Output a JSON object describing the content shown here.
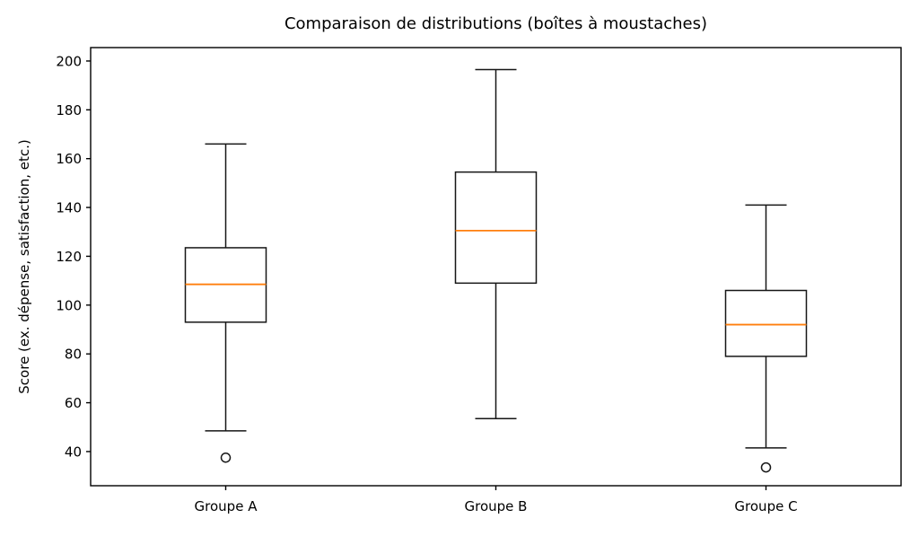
{
  "chart_data": {
    "type": "boxplot",
    "title": "Comparaison de distributions (boîtes à moustaches)",
    "xlabel": "",
    "ylabel": "Score (ex. dépense, satisfaction, etc.)",
    "categories": [
      "Groupe A",
      "Groupe B",
      "Groupe C"
    ],
    "y_ticks": [
      40,
      60,
      80,
      100,
      120,
      140,
      160,
      180,
      200
    ],
    "ylim": [
      26,
      205.5
    ],
    "grid": false,
    "legend": null,
    "series": [
      {
        "name": "Groupe A",
        "whisker_low": 48.5,
        "q1": 93,
        "median": 108.5,
        "q3": 123.5,
        "whisker_high": 166,
        "outliers": [
          37.5
        ]
      },
      {
        "name": "Groupe B",
        "whisker_low": 53.5,
        "q1": 109,
        "median": 130.5,
        "q3": 154.5,
        "whisker_high": 196.5,
        "outliers": []
      },
      {
        "name": "Groupe C",
        "whisker_low": 41.5,
        "q1": 79,
        "median": 92,
        "q3": 106,
        "whisker_high": 141,
        "outliers": [
          33.5
        ]
      }
    ],
    "colors": {
      "axis": "#000000",
      "box_stroke": "#161616",
      "median": "#ff7f0e",
      "background": "#ffffff",
      "text": "#000000"
    }
  }
}
